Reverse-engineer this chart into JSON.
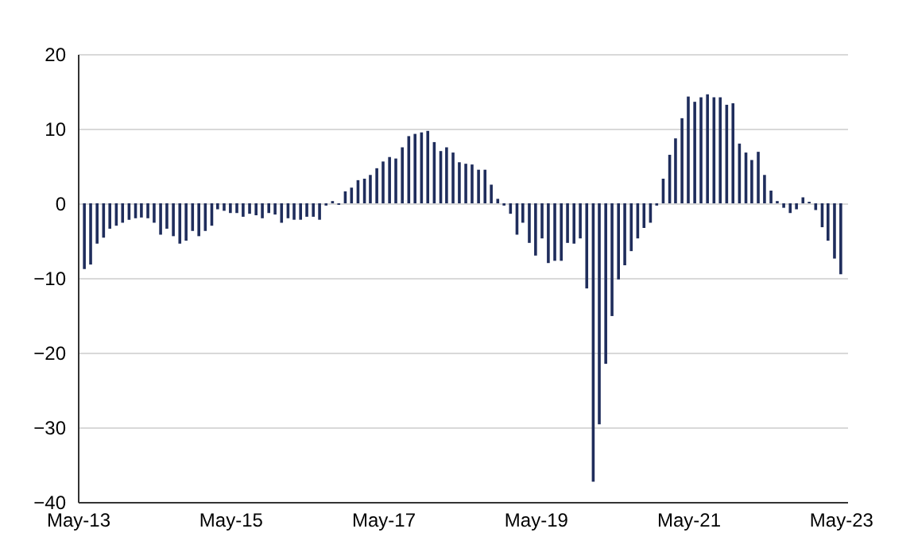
{
  "chart_data": {
    "type": "bar",
    "x": [
      "2013-06-01",
      "2013-07-01",
      "2013-08-01",
      "2013-09-01",
      "2013-10-01",
      "2013-11-01",
      "2013-12-01",
      "2014-01-01",
      "2014-02-01",
      "2014-03-01",
      "2014-04-01",
      "2014-05-01",
      "2014-06-01",
      "2014-07-01",
      "2014-08-01",
      "2014-09-01",
      "2014-10-01",
      "2014-11-01",
      "2014-12-01",
      "2015-01-01",
      "2015-02-01",
      "2015-03-01",
      "2015-04-01",
      "2015-05-01",
      "2015-06-01",
      "2015-07-01",
      "2015-08-01",
      "2015-09-01",
      "2015-10-01",
      "2015-11-01",
      "2015-12-01",
      "2016-01-01",
      "2016-02-01",
      "2016-03-01",
      "2016-04-01",
      "2016-05-01",
      "2016-06-01",
      "2016-07-01",
      "2016-08-01",
      "2016-09-01",
      "2016-10-01",
      "2016-11-01",
      "2016-12-01",
      "2017-01-01",
      "2017-02-01",
      "2017-03-01",
      "2017-04-01",
      "2017-05-01",
      "2017-06-01",
      "2017-07-01",
      "2017-08-01",
      "2017-09-01",
      "2017-10-01",
      "2017-11-01",
      "2017-12-01",
      "2018-01-01",
      "2018-02-01",
      "2018-03-01",
      "2018-04-01",
      "2018-05-01",
      "2018-06-01",
      "2018-07-01",
      "2018-08-01",
      "2018-09-01",
      "2018-10-01",
      "2018-11-01",
      "2018-12-01",
      "2019-01-01",
      "2019-02-01",
      "2019-03-01",
      "2019-04-01",
      "2019-05-01",
      "2019-06-01",
      "2019-07-01",
      "2019-08-01",
      "2019-09-01",
      "2019-10-01",
      "2019-11-01",
      "2019-12-01",
      "2020-01-01",
      "2020-02-01",
      "2020-03-01",
      "2020-04-01",
      "2020-05-01",
      "2020-06-01",
      "2020-07-01",
      "2020-08-01",
      "2020-09-01",
      "2020-10-01",
      "2020-11-01",
      "2020-12-01",
      "2021-01-01",
      "2021-02-01",
      "2021-03-01",
      "2021-04-01",
      "2021-05-01",
      "2021-06-01",
      "2021-07-01",
      "2021-08-01",
      "2021-09-01",
      "2021-10-01",
      "2021-11-01",
      "2021-12-01",
      "2022-01-01",
      "2022-02-01",
      "2022-03-01",
      "2022-04-01",
      "2022-05-01",
      "2022-06-01",
      "2022-07-01",
      "2022-08-01",
      "2022-09-01",
      "2022-10-01",
      "2022-11-01",
      "2022-12-01",
      "2023-01-01",
      "2023-02-01",
      "2023-03-01",
      "2023-04-01",
      "2023-05-01"
    ],
    "series": [
      {
        "color": "#1f2d5c",
        "values": [
          -8.8,
          -8.2,
          -5.4,
          -4.6,
          -3.4,
          -3,
          -2.6,
          -2.2,
          -2,
          -1.9,
          -2,
          -2.6,
          -4.2,
          -3.4,
          -4.4,
          -5.4,
          -5,
          -3.7,
          -4.4,
          -3.7,
          -3,
          -0.8,
          -1,
          -1.3,
          -1.3,
          -1.8,
          -1.4,
          -1.6,
          -2,
          -1.3,
          -1.5,
          -2.6,
          -2,
          -2.2,
          -2.2,
          -1.8,
          -1.8,
          -2.2,
          -0.3,
          0.3,
          -0.2,
          1.6,
          2.1,
          3.1,
          3.3,
          3.8,
          4.7,
          5.6,
          6.2,
          6,
          7.5,
          9,
          9.3,
          9.5,
          9.7,
          8.2,
          7,
          7.5,
          6.8,
          5.5,
          5.3,
          5.2,
          4.5,
          4.5,
          2.5,
          0.6,
          -0.3,
          -1.4,
          -4.2,
          -2.6,
          -5.3,
          -7,
          -4.7,
          -8,
          -7.7,
          -7.7,
          -5.3,
          -5.4,
          -4.7,
          -11.4,
          -37.3,
          -29.6,
          -21.5,
          -15.1,
          -10.2,
          -8.3,
          -6.4,
          -4.7,
          -3.3,
          -2.6,
          -0.3,
          3.3,
          6.5,
          8.7,
          11.4,
          14.3,
          13.6,
          14.2,
          14.6,
          14.2,
          14.2,
          13.2,
          13.4,
          8,
          6.8,
          5.8,
          6.9,
          3.8,
          1.7,
          0.3,
          -0.6,
          -1.3,
          -0.8,
          0.8,
          0.2,
          -0.9,
          -3.2,
          -5,
          -7.4,
          -9.5
        ]
      }
    ],
    "xlim": [
      "2013-05-01",
      "2023-06-01"
    ],
    "xticks": [
      {
        "value": "2013-05-01",
        "label": "May-13"
      },
      {
        "value": "2015-05-01",
        "label": "May-15"
      },
      {
        "value": "2017-05-01",
        "label": "May-17"
      },
      {
        "value": "2019-05-01",
        "label": "May-19"
      },
      {
        "value": "2021-05-01",
        "label": "May-21"
      },
      {
        "value": "2023-05-01",
        "label": "May-23"
      }
    ],
    "ylim": [
      -40,
      20
    ],
    "yticks": [
      -40,
      -30,
      -20,
      -10,
      0,
      10,
      20
    ],
    "grid": "y"
  }
}
